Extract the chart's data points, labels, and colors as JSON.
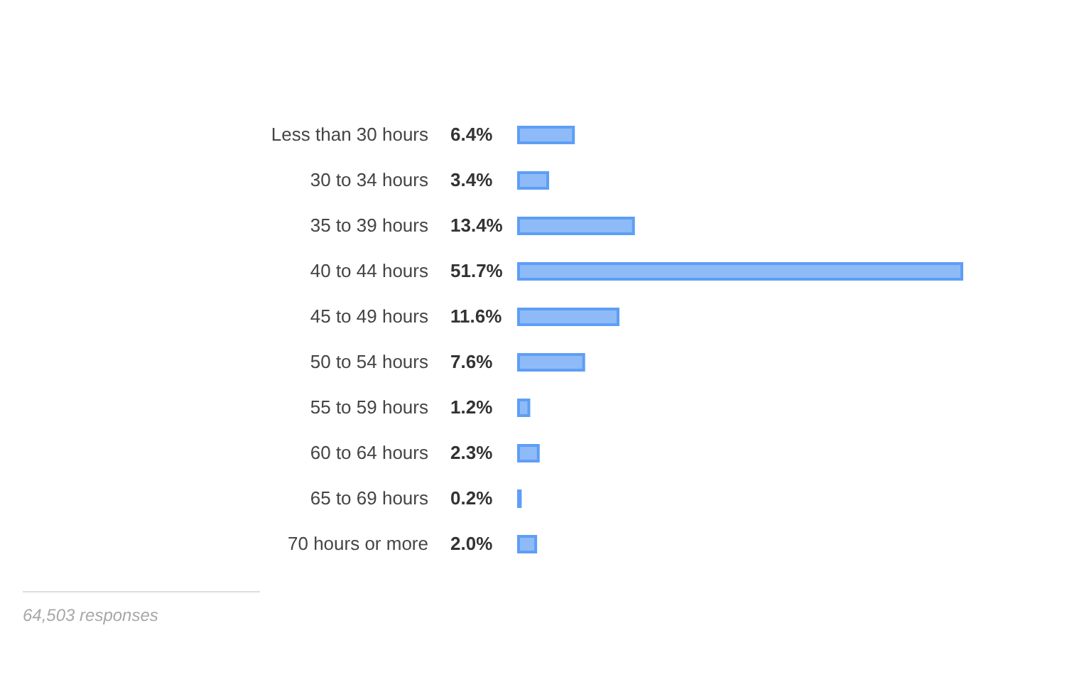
{
  "chart_data": {
    "type": "bar",
    "orientation": "horizontal",
    "tick_labels": "y",
    "categories": [
      "Less than 30 hours",
      "30 to 34 hours",
      "35 to 39 hours",
      "40 to 44 hours",
      "45 to 49 hours",
      "50 to 54 hours",
      "55 to 59 hours",
      "60 to 64 hours",
      "65 to 69 hours",
      "70 hours or more"
    ],
    "values": [
      6.4,
      3.4,
      13.4,
      51.7,
      11.6,
      7.6,
      1.2,
      2.3,
      0.2,
      2.0
    ],
    "value_labels": [
      "6.4%",
      "3.4%",
      "13.4%",
      "51.7%",
      "11.6%",
      "7.6%",
      "1.2%",
      "2.3%",
      "0.2%",
      "2.0%"
    ],
    "color": "#8ebbf8",
    "annotations": [
      "64,503 responses"
    ]
  }
}
